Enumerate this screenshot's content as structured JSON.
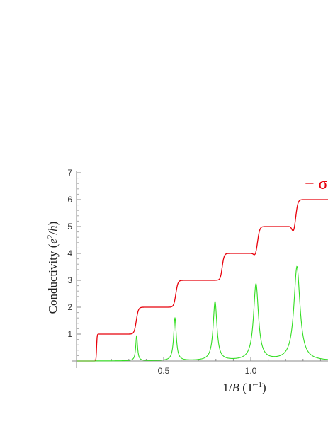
{
  "chart_data": {
    "type": "line",
    "xlabel": "1/B (T−1)",
    "ylabel": "Conductivity (e²/h)",
    "xlim": [
      0.0,
      1.4
    ],
    "ylim": [
      0,
      7
    ],
    "x_ticks": [
      "0.5",
      "1.0"
    ],
    "y_ticks": [
      "1",
      "2",
      "3",
      "4",
      "5",
      "6",
      "7"
    ],
    "grid": false,
    "legend_visible_text": "− σ",
    "series": [
      {
        "color": "#e8000b",
        "description": "Hall-like conductivity with quantized plateaus",
        "x": [
          0.0,
          0.11,
          0.115,
          0.34,
          0.345,
          0.565,
          0.575,
          0.83,
          0.84,
          1.03,
          1.045,
          1.25,
          1.265,
          1.4
        ],
        "y": [
          0,
          0,
          1,
          1,
          2,
          2,
          3,
          3,
          4,
          4,
          5,
          5,
          6,
          6
        ]
      },
      {
        "color": "#33dd22",
        "description": "Longitudinal conductivity with resonance peaks",
        "peaks": [
          {
            "x": 0.345,
            "y": 0.95
          },
          {
            "x": 0.565,
            "y": 1.6
          },
          {
            "x": 0.795,
            "y": 2.2
          },
          {
            "x": 1.03,
            "y": 2.85
          },
          {
            "x": 1.265,
            "y": 3.5
          }
        ]
      }
    ]
  }
}
